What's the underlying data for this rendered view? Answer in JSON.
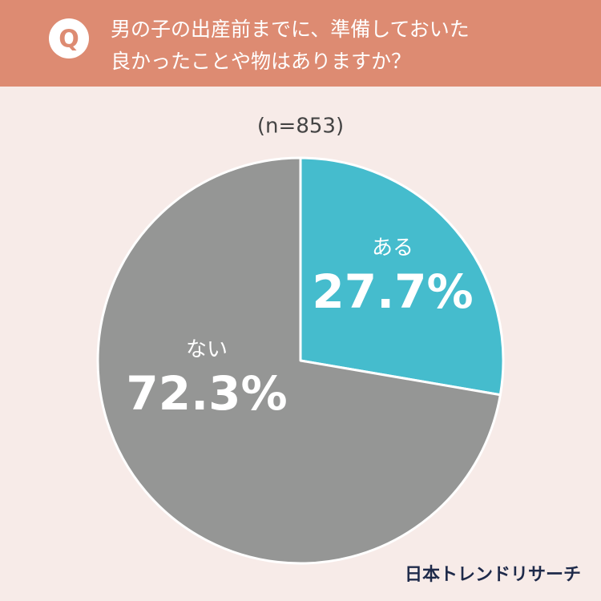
{
  "chart_data": {
    "type": "pie",
    "badge": "Q",
    "title": [
      "男の子の出産前までに、準備しておいた",
      "良かったことや物はありますか？"
    ],
    "subtitle": "(n=853)",
    "categories": [
      "ある",
      "ない"
    ],
    "values": [
      27.7,
      72.3
    ],
    "value_labels": [
      "27.7%",
      "72.3%"
    ],
    "colors": [
      "#45bccd",
      "#959695"
    ],
    "source": "日本トレンドリサーチ"
  }
}
